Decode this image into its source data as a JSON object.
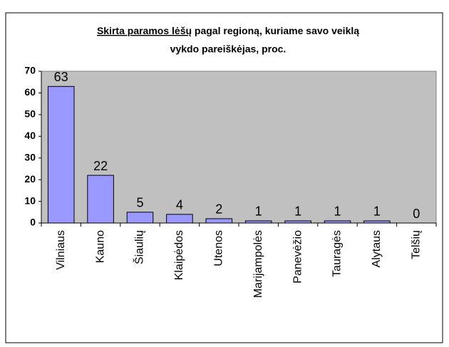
{
  "chart_data": {
    "type": "bar",
    "title_underlined": "Skirta paramos lėšų",
    "title_lines": [
      " pagal regioną, kuriame savo veiklą",
      "vykdo pareiškėjas, proc."
    ],
    "categories": [
      "Vilniaus",
      "Kauno",
      "Šiaulių",
      "Klaipėdos",
      "Utenos",
      "Marijampolės",
      "Panevėžio",
      "Tauragės",
      "Alytaus",
      "Telšių"
    ],
    "values": [
      63,
      22,
      5,
      4,
      2,
      1,
      1,
      1,
      1,
      0
    ],
    "color": "#9999ff",
    "ylim": [
      0,
      70
    ],
    "yticks": [
      0,
      10,
      20,
      30,
      40,
      50,
      60,
      70
    ],
    "grid": false
  }
}
